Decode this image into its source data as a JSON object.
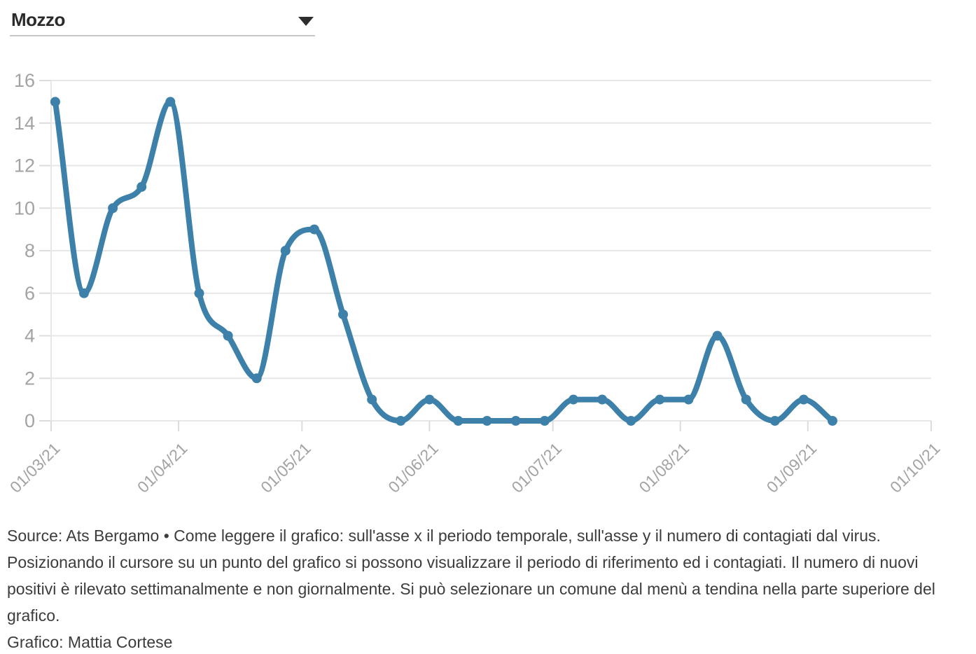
{
  "dropdown": {
    "selected_value": "Mozzo"
  },
  "chart_data": {
    "type": "line",
    "title": "",
    "xlabel": "",
    "ylabel": "",
    "ylim": [
      0,
      16
    ],
    "y_tick_labels": [
      "0",
      "2",
      "4",
      "6",
      "8",
      "10",
      "12",
      "14",
      "16"
    ],
    "x_tick_labels": [
      "01/03/21",
      "01/04/21",
      "01/05/21",
      "01/06/21",
      "01/07/21",
      "01/08/21",
      "01/09/21",
      "01/10/21"
    ],
    "grid": "horizontal",
    "legend": "none",
    "line_color": "#3d81aa",
    "point_color": "#3d81aa",
    "axis_label_color": "#a3a3a3",
    "series": [
      {
        "name": "Mozzo",
        "points": [
          {
            "date": "02/03/21",
            "value": 15
          },
          {
            "date": "09/03/21",
            "value": 6
          },
          {
            "date": "16/03/21",
            "value": 10
          },
          {
            "date": "23/03/21",
            "value": 11
          },
          {
            "date": "30/03/21",
            "value": 15
          },
          {
            "date": "06/04/21",
            "value": 6
          },
          {
            "date": "13/04/21",
            "value": 4
          },
          {
            "date": "20/04/21",
            "value": 2
          },
          {
            "date": "27/04/21",
            "value": 8
          },
          {
            "date": "04/05/21",
            "value": 9
          },
          {
            "date": "11/05/21",
            "value": 5
          },
          {
            "date": "18/05/21",
            "value": 1
          },
          {
            "date": "25/05/21",
            "value": 0
          },
          {
            "date": "01/06/21",
            "value": 1
          },
          {
            "date": "08/06/21",
            "value": 0
          },
          {
            "date": "15/06/21",
            "value": 0
          },
          {
            "date": "22/06/21",
            "value": 0
          },
          {
            "date": "29/06/21",
            "value": 0
          },
          {
            "date": "06/07/21",
            "value": 1
          },
          {
            "date": "13/07/21",
            "value": 1
          },
          {
            "date": "20/07/21",
            "value": 0
          },
          {
            "date": "27/07/21",
            "value": 1
          },
          {
            "date": "03/08/21",
            "value": 1
          },
          {
            "date": "10/08/21",
            "value": 4
          },
          {
            "date": "17/08/21",
            "value": 1
          },
          {
            "date": "24/08/21",
            "value": 0
          },
          {
            "date": "31/08/21",
            "value": 1
          },
          {
            "date": "07/09/21",
            "value": 0
          }
        ]
      }
    ]
  },
  "footer": {
    "source_text": "Source: Ats Bergamo • Come leggere il grafico: sull'asse x il periodo temporale, sull'asse y il numero di contagiati dal virus. Posizionando il cursore su un punto del grafico si possono visualizzare il periodo di riferimento ed i contagiati. Il numero di nuovi positivi è rilevato settimanalmente e non giornalmente. Si può selezionare un comune dal menù a tendina nella parte superiore del grafico.",
    "credit_text": "Grafico: Mattia Cortese"
  }
}
